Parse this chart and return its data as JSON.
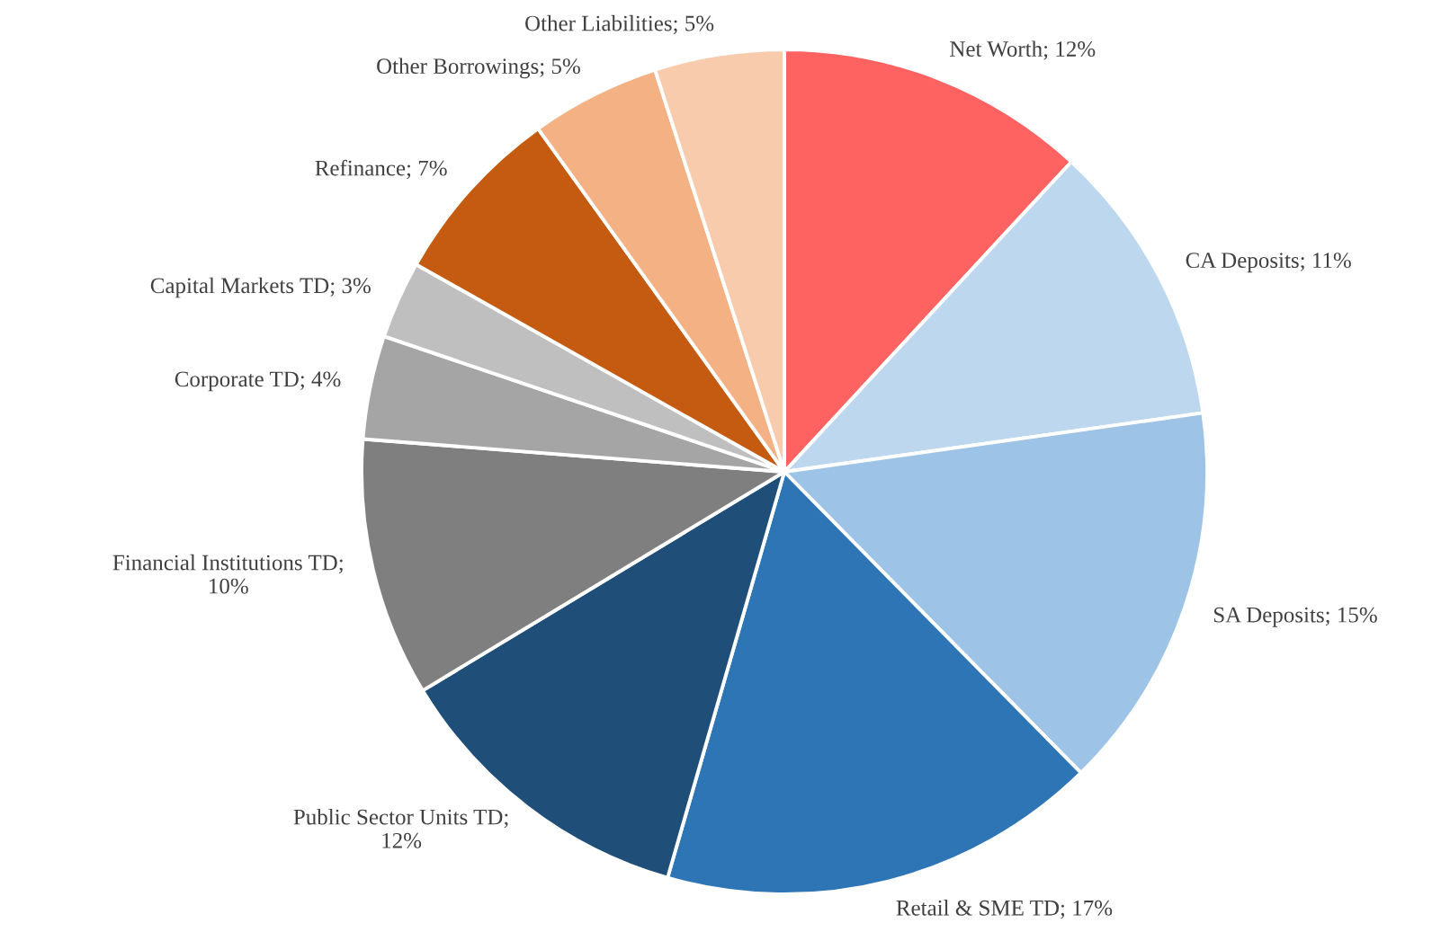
{
  "chart_data": {
    "type": "pie",
    "categories": [
      "Net Worth; 12%",
      "CA Deposits; 11%",
      "SA Deposits; 15%",
      "Retail & SME TD; 17%",
      "Public Sector Units TD;\n12%",
      "Financial Institutions TD;\n10%",
      "Corporate TD; 4%",
      "Capital Markets TD; 3%",
      "Refinance; 7%",
      "Other Borrowings; 5%",
      "Other Liabilities; 5%"
    ],
    "values": [
      12,
      11,
      15,
      17,
      12,
      10,
      4,
      3,
      7,
      5,
      5
    ],
    "colors": [
      "#ff6361",
      "#bdd7ee",
      "#9dc3e6",
      "#2e75b6",
      "#1f4e79",
      "#7f7f7f",
      "#a5a5a5",
      "#bfbfbf",
      "#c55a11",
      "#f4b183",
      "#f8cbad"
    ]
  }
}
